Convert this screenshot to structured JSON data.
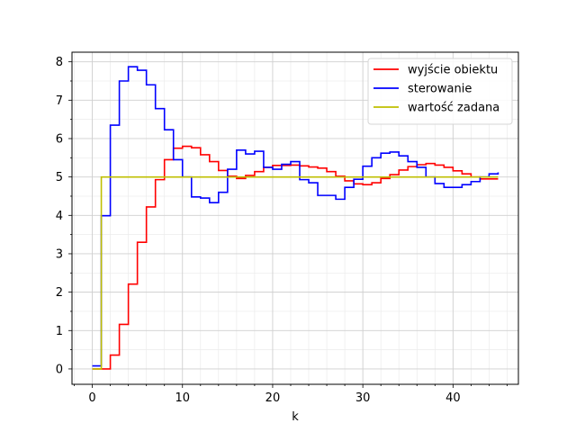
{
  "chart_data": {
    "type": "line",
    "step": "post",
    "title": "",
    "xlabel": "k",
    "ylabel": "",
    "xlim": [
      -2.25,
      47.25
    ],
    "ylim": [
      -0.4,
      8.25
    ],
    "xticks": [
      0,
      10,
      20,
      30,
      40
    ],
    "yticks": [
      0,
      1,
      2,
      3,
      4,
      5,
      6,
      7,
      8
    ],
    "grid": {
      "major": true,
      "minor": true
    },
    "legend_position": "top-right",
    "series": [
      {
        "name": "wyjście obiektu",
        "color": "#ff0000",
        "x": [
          0,
          1,
          2,
          3,
          4,
          5,
          6,
          7,
          8,
          9,
          10,
          11,
          12,
          13,
          14,
          15,
          16,
          17,
          18,
          19,
          20,
          21,
          22,
          23,
          24,
          25,
          26,
          27,
          28,
          29,
          30,
          31,
          32,
          33,
          34,
          35,
          36,
          37,
          38,
          39,
          40,
          41,
          42,
          43,
          44,
          45
        ],
        "values": [
          0,
          0,
          0.36,
          1.16,
          2.21,
          3.3,
          4.22,
          4.93,
          5.45,
          5.75,
          5.8,
          5.76,
          5.58,
          5.4,
          5.17,
          5.02,
          4.96,
          5.04,
          5.14,
          5.25,
          5.3,
          5.3,
          5.31,
          5.29,
          5.26,
          5.23,
          5.14,
          5.02,
          4.9,
          4.82,
          4.8,
          4.85,
          4.96,
          5.06,
          5.18,
          5.27,
          5.32,
          5.35,
          5.31,
          5.25,
          5.16,
          5.08,
          5.0,
          4.95,
          4.95,
          4.95
        ]
      },
      {
        "name": "sterowanie",
        "color": "#0000ff",
        "x": [
          0,
          1,
          2,
          3,
          4,
          5,
          6,
          7,
          8,
          9,
          10,
          11,
          12,
          13,
          14,
          15,
          16,
          17,
          18,
          19,
          20,
          21,
          22,
          23,
          24,
          25,
          26,
          27,
          28,
          29,
          30,
          31,
          32,
          33,
          34,
          35,
          36,
          37,
          38,
          39,
          40,
          41,
          42,
          43,
          44,
          45
        ],
        "values": [
          0.08,
          3.99,
          6.35,
          7.5,
          7.87,
          7.78,
          7.4,
          6.78,
          6.23,
          5.45,
          5.0,
          4.48,
          4.45,
          4.33,
          4.6,
          5.2,
          5.7,
          5.6,
          5.67,
          5.25,
          5.2,
          5.33,
          5.4,
          4.93,
          4.85,
          4.52,
          4.52,
          4.42,
          4.73,
          4.94,
          5.28,
          5.5,
          5.62,
          5.65,
          5.55,
          5.4,
          5.25,
          5.0,
          4.83,
          4.73,
          4.73,
          4.8,
          4.88,
          5.0,
          5.08,
          5.12
        ]
      },
      {
        "name": "wartość zadana",
        "color": "#bfbf00",
        "x": [
          0,
          1,
          45
        ],
        "values": [
          0,
          5,
          5
        ]
      }
    ]
  }
}
